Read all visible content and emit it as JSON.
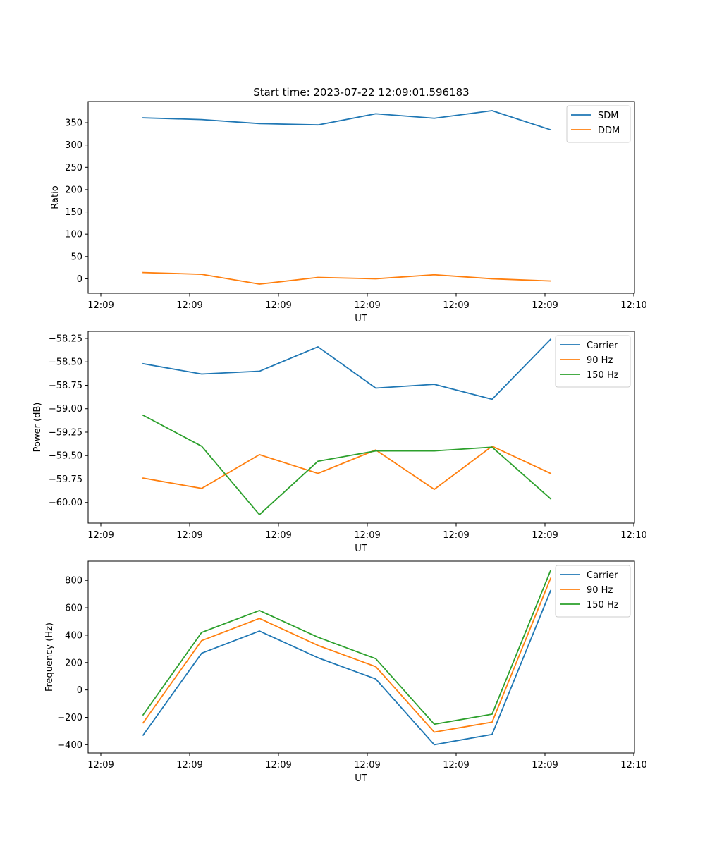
{
  "figure": {
    "title": "Start time: 2023-07-22 12:09:01.596183"
  },
  "chart_data": [
    {
      "type": "line",
      "xlabel": "UT",
      "ylabel": "Ratio",
      "x_ticks": [
        "12:09",
        "12:09",
        "12:09",
        "12:09",
        "12:09",
        "12:09",
        "12:10"
      ],
      "ylim": [
        -32.5,
        397.5
      ],
      "y_ticks": [
        "0",
        "50",
        "100",
        "150",
        "200",
        "250",
        "300",
        "350"
      ],
      "y_tick_values": [
        0,
        50,
        100,
        150,
        200,
        250,
        300,
        350
      ],
      "legend_position": "top-right",
      "series": [
        {
          "name": "SDM",
          "color": "#1f77b4",
          "values": [
            361,
            357,
            348,
            345,
            370,
            360,
            377,
            334
          ]
        },
        {
          "name": "DDM",
          "color": "#ff7f0e",
          "values": [
            14,
            10,
            -12,
            3,
            0,
            9,
            0,
            -5
          ]
        }
      ]
    },
    {
      "type": "line",
      "xlabel": "UT",
      "ylabel": "Power (dB)",
      "x_ticks": [
        "12:09",
        "12:09",
        "12:09",
        "12:09",
        "12:09",
        "12:09",
        "12:10"
      ],
      "ylim": [
        -60.22,
        -58.175
      ],
      "y_ticks": [
        "−60.00",
        "−59.75",
        "−59.50",
        "−59.25",
        "−59.00",
        "−58.75",
        "−58.50",
        "−58.25"
      ],
      "y_tick_values": [
        -60.0,
        -59.75,
        -59.5,
        -59.25,
        -59.0,
        -58.75,
        -58.5,
        -58.25
      ],
      "legend_position": "top-right",
      "series": [
        {
          "name": "Carrier",
          "color": "#1f77b4",
          "values": [
            -58.52,
            -58.63,
            -58.6,
            -58.34,
            -58.78,
            -58.74,
            -58.9,
            -58.26
          ]
        },
        {
          "name": "90 Hz",
          "color": "#ff7f0e",
          "values": [
            -59.74,
            -59.85,
            -59.49,
            -59.69,
            -59.44,
            -59.86,
            -59.4,
            -59.69
          ]
        },
        {
          "name": "150 Hz",
          "color": "#2ca02c",
          "values": [
            -59.07,
            -59.4,
            -60.13,
            -59.56,
            -59.45,
            -59.45,
            -59.41,
            -59.96
          ]
        }
      ]
    },
    {
      "type": "line",
      "xlabel": "UT",
      "ylabel": "Frequency (Hz)",
      "x_ticks": [
        "12:09",
        "12:09",
        "12:09",
        "12:09",
        "12:09",
        "12:09",
        "12:10"
      ],
      "ylim": [
        -460,
        940
      ],
      "y_ticks": [
        "−400",
        "−200",
        "0",
        "200",
        "400",
        "600",
        "800"
      ],
      "y_tick_values": [
        -400,
        -200,
        0,
        200,
        400,
        600,
        800
      ],
      "legend_position": "top-right",
      "series": [
        {
          "name": "Carrier",
          "color": "#1f77b4",
          "values": [
            -330,
            268,
            430,
            235,
            80,
            -400,
            -325,
            725
          ]
        },
        {
          "name": "90 Hz",
          "color": "#ff7f0e",
          "values": [
            -240,
            360,
            522,
            325,
            170,
            -308,
            -235,
            815
          ]
        },
        {
          "name": "150 Hz",
          "color": "#2ca02c",
          "values": [
            -182,
            420,
            580,
            385,
            228,
            -250,
            -177,
            872
          ]
        }
      ]
    }
  ]
}
